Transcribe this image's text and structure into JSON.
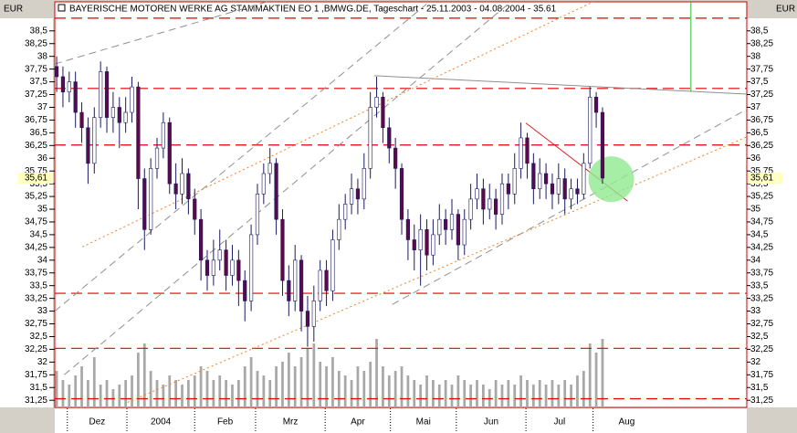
{
  "chart_data": {
    "type": "candlestick",
    "title": "BAYERISCHE MOTOREN WERKE AG STAMMAKTIEN EO 1 ,BMWG.DE, Tageschart - 25.11.2003 - 04.08.2004 - 35.61",
    "unit_left": "EUR",
    "unit_right": "EUR",
    "open": [
      37.8,
      37.6,
      37.3,
      37.5,
      36.9,
      36.6,
      35.9,
      36.8,
      37.7,
      36.8,
      37.0,
      36.7,
      36.9,
      37.4,
      35.6,
      34.6,
      35.8,
      36.2,
      36.7,
      35.5,
      35.3,
      35.7,
      35.2,
      34.8,
      34.0,
      33.7,
      34.0,
      34.2,
      33.7,
      34.0,
      33.6,
      33.2,
      34.5,
      35.3,
      35.7,
      35.9,
      34.8,
      33.6,
      33.2,
      34.0,
      33.0,
      32.7,
      33.2,
      33.8,
      33.4,
      34.4,
      34.8,
      35.1,
      35.4,
      35.2,
      35.8,
      37.0,
      37.2,
      36.6,
      36.2,
      35.8,
      34.8,
      34.4,
      34.2,
      34.6,
      34.1,
      34.5,
      34.8,
      34.6,
      34.9,
      34.3,
      34.8,
      35.2,
      35.4,
      35.0,
      35.2,
      34.9,
      35.5,
      35.3,
      35.8,
      36.4,
      35.9,
      35.4,
      35.7,
      35.5,
      35.3,
      35.6,
      35.2,
      35.4,
      35.3,
      35.9,
      37.2,
      36.9
    ],
    "high": [
      38.0,
      37.8,
      37.7,
      37.7,
      37.1,
      36.8,
      37.0,
      37.9,
      37.8,
      37.3,
      37.2,
      37.2,
      37.6,
      37.5,
      35.8,
      36.0,
      36.4,
      36.9,
      36.8,
      35.9,
      36.0,
      35.8,
      35.4,
      35.0,
      34.2,
      34.4,
      34.6,
      34.4,
      34.3,
      34.2,
      33.8,
      34.7,
      35.5,
      35.9,
      36.2,
      36.0,
      35.0,
      33.9,
      34.3,
      34.1,
      33.3,
      33.5,
      34.0,
      34.0,
      34.6,
      35.1,
      35.3,
      35.7,
      35.6,
      36.1,
      37.3,
      37.6,
      37.3,
      36.8,
      36.4,
      35.9,
      35.0,
      34.7,
      34.9,
      34.8,
      34.8,
      35.1,
      35.0,
      35.2,
      35.0,
      35.0,
      35.5,
      35.7,
      35.6,
      35.5,
      35.4,
      35.7,
      35.7,
      36.1,
      36.7,
      36.5,
      36.1,
      36.0,
      35.9,
      35.7,
      35.9,
      35.8,
      35.6,
      35.6,
      36.1,
      37.4,
      37.3,
      37.0
    ],
    "low": [
      37.3,
      37.0,
      37.1,
      36.6,
      36.3,
      35.5,
      35.7,
      36.6,
      36.5,
      36.5,
      36.2,
      36.5,
      36.7,
      35.0,
      34.2,
      34.5,
      35.6,
      36.0,
      35.3,
      35.0,
      35.1,
      34.9,
      34.5,
      33.6,
      33.4,
      33.5,
      33.8,
      33.4,
      33.5,
      33.1,
      32.8,
      33.0,
      34.3,
      35.1,
      35.5,
      34.5,
      33.3,
      32.9,
      33.0,
      32.6,
      32.3,
      32.4,
      33.0,
      33.1,
      33.2,
      34.2,
      34.6,
      34.9,
      34.9,
      35.0,
      35.6,
      36.8,
      36.3,
      35.9,
      35.4,
      34.5,
      34.0,
      33.8,
      33.5,
      33.8,
      33.9,
      34.3,
      34.3,
      34.4,
      34.0,
      34.1,
      34.6,
      35.0,
      34.7,
      34.8,
      34.6,
      34.7,
      35.0,
      35.1,
      35.6,
      35.6,
      35.1,
      35.2,
      35.2,
      35.0,
      35.1,
      34.9,
      35.0,
      35.1,
      35.2,
      35.8,
      36.6,
      35.5
    ],
    "close": [
      37.6,
      37.3,
      37.5,
      36.9,
      36.6,
      35.9,
      36.8,
      37.7,
      36.8,
      37.0,
      36.7,
      36.9,
      37.4,
      35.6,
      34.6,
      35.8,
      36.2,
      36.7,
      35.5,
      35.3,
      35.7,
      35.2,
      34.8,
      34.0,
      33.7,
      34.0,
      34.2,
      33.7,
      34.0,
      33.6,
      33.2,
      34.5,
      35.3,
      35.7,
      35.9,
      34.8,
      33.6,
      33.2,
      34.0,
      33.0,
      32.7,
      33.2,
      33.8,
      33.4,
      34.4,
      34.8,
      35.1,
      35.4,
      35.2,
      35.8,
      37.0,
      37.2,
      36.6,
      36.2,
      35.8,
      34.8,
      34.4,
      34.2,
      34.6,
      34.1,
      34.5,
      34.8,
      34.6,
      34.9,
      34.3,
      34.8,
      35.2,
      35.4,
      35.0,
      35.2,
      34.9,
      35.5,
      35.3,
      35.8,
      36.4,
      35.9,
      35.4,
      35.7,
      35.5,
      35.3,
      35.6,
      35.2,
      35.4,
      35.3,
      35.9,
      37.2,
      36.9,
      35.61
    ],
    "volume": [
      40,
      30,
      25,
      35,
      45,
      30,
      55,
      25,
      30,
      20,
      25,
      30,
      35,
      60,
      70,
      40,
      30,
      25,
      35,
      30,
      25,
      30,
      35,
      45,
      40,
      30,
      35,
      30,
      25,
      30,
      45,
      55,
      40,
      35,
      30,
      45,
      50,
      60,
      45,
      55,
      65,
      70,
      50,
      45,
      55,
      40,
      35,
      30,
      45,
      40,
      50,
      75,
      45,
      35,
      40,
      45,
      35,
      30,
      25,
      35,
      30,
      25,
      30,
      25,
      35,
      30,
      25,
      30,
      25,
      20,
      30,
      25,
      30,
      25,
      35,
      30,
      25,
      30,
      25,
      30,
      25,
      30,
      25,
      35,
      40,
      70,
      60,
      75
    ],
    "vlim": [
      0,
      100
    ],
    "xlim": [
      -0.3,
      110
    ],
    "ylim": [
      31.11,
      39.07
    ],
    "xticks": [
      {
        "value": 1.7,
        "label": "Dez"
      },
      {
        "value": 11.2,
        "label": "2004"
      },
      {
        "value": 22,
        "label": "Feb"
      },
      {
        "value": 31.7,
        "label": "Mrz"
      },
      {
        "value": 42.8,
        "label": "Apr"
      },
      {
        "value": 53.2,
        "label": "Mai"
      },
      {
        "value": 63.7,
        "label": "Jun"
      },
      {
        "value": 74.8,
        "label": "Jul"
      },
      {
        "value": 85.5,
        "label": "Aug"
      }
    ],
    "yticks": [
      {
        "value": 31.25,
        "label": "31,25"
      },
      {
        "value": 31.5,
        "label": "31,5"
      },
      {
        "value": 31.75,
        "label": "31,75"
      },
      32,
      {
        "value": 32.25,
        "label": "32,25"
      },
      {
        "value": 32.5,
        "label": "32,5"
      },
      {
        "value": 32.75,
        "label": "32,75"
      },
      33,
      {
        "value": 33.25,
        "label": "33,25"
      },
      {
        "value": 33.5,
        "label": "33,5"
      },
      {
        "value": 33.75,
        "label": "33,75"
      },
      34,
      {
        "value": 34.25,
        "label": "34,25"
      },
      {
        "value": 34.5,
        "label": "34,5"
      },
      {
        "value": 34.75,
        "label": "34,75"
      },
      35,
      {
        "value": 35.25,
        "label": "35,25"
      },
      {
        "value": 35.5,
        "label": "35,5"
      },
      {
        "value": 35.75,
        "label": "35,75"
      },
      36,
      {
        "value": 36.25,
        "label": "36,25"
      },
      {
        "value": 36.5,
        "label": "36,5"
      },
      {
        "value": 36.75,
        "label": "36,75"
      },
      37,
      {
        "value": 37.25,
        "label": "37,25"
      },
      {
        "value": 37.5,
        "label": "37,5"
      },
      {
        "value": 37.75,
        "label": "37,75"
      },
      38,
      {
        "value": 38.25,
        "label": "38,25"
      },
      {
        "value": 38.5,
        "label": "38,5"
      }
    ],
    "last_price": {
      "value": 35.61,
      "label": "35,61"
    },
    "hlines": [
      38.75,
      37.37,
      36.26,
      33.35,
      32.27,
      31.28
    ],
    "hline_color": "#e00000",
    "trendlines": [
      {
        "points": [
          -0.3,
          37.85,
          33.5,
          39.07
        ],
        "color": "#909090",
        "style": "dashed"
      },
      {
        "points": [
          -0.3,
          33.0,
          59.4,
          39.07
        ],
        "color": "#909090",
        "style": "dashed"
      },
      {
        "points": [
          1.2,
          31.75,
          72.4,
          39.07
        ],
        "color": "#909090",
        "style": "dashed"
      },
      {
        "points": [
          53.5,
          33.13,
          110,
          36.96
        ],
        "color": "#909090",
        "style": "dashed"
      },
      {
        "points": [
          50.6,
          37.62,
          110,
          37.26
        ],
        "color": "#909090",
        "style": "solid"
      },
      {
        "points": [
          4.1,
          34.26,
          85.5,
          39.07
        ],
        "color": "#f08020",
        "style": "dotted"
      },
      {
        "points": [
          11.3,
          31.21,
          110,
          36.42
        ],
        "color": "#f08020",
        "style": "dotted"
      },
      {
        "points": [
          74.8,
          36.69,
          91.0,
          35.16
        ],
        "color": "#e02020",
        "style": "solid"
      },
      {
        "points": [
          101.1,
          39.07,
          101.1,
          37.31
        ],
        "color": "#20c020",
        "style": "solid"
      }
    ],
    "marker": {
      "x": 88.4,
      "y": 35.59,
      "color": "#90e890"
    },
    "up_color": "#ffffff",
    "down_color": "#5a0a4a",
    "wick_color": "#1a1a60",
    "volume_color": "#a8a8a8"
  }
}
